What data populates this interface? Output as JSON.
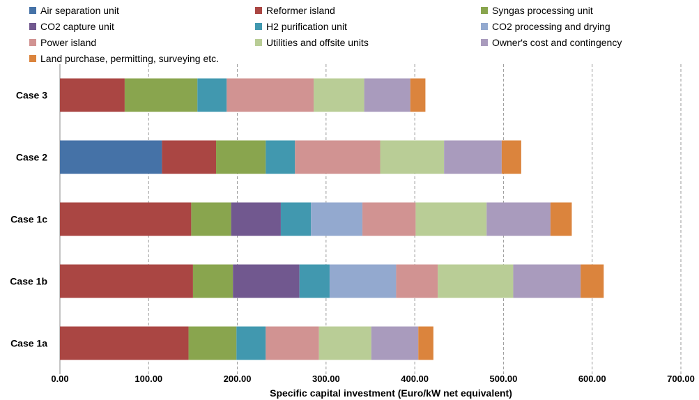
{
  "chart_data": {
    "type": "bar",
    "orientation": "horizontal",
    "stacked": true,
    "title": "",
    "xlabel": "Specific capital investment (Euro/kW net equivalent)",
    "ylabel": "",
    "xlim": [
      0,
      700
    ],
    "x_ticks": [
      0,
      100,
      200,
      300,
      400,
      500,
      600,
      700
    ],
    "x_tick_labels": [
      "0.00",
      "100.00",
      "200.00",
      "300.00",
      "400.00",
      "500.00",
      "600.00",
      "700.00"
    ],
    "grid": "vertical dashed",
    "legend_position": "top",
    "categories": [
      "Case 3",
      "Case 2",
      "Case 1c",
      "Case 1b",
      "Case 1a"
    ],
    "series": [
      {
        "name": "Air separation unit",
        "color": "#4572A7",
        "values": [
          0,
          115,
          0,
          0,
          0
        ]
      },
      {
        "name": "Reformer island",
        "color": "#AA4643",
        "values": [
          73,
          61,
          148,
          150,
          145
        ]
      },
      {
        "name": "Syngas processing unit",
        "color": "#89A54E",
        "values": [
          82,
          56,
          45,
          45,
          54
        ]
      },
      {
        "name": "CO2 capture unit",
        "color": "#71588F",
        "values": [
          0,
          0,
          56,
          75,
          0
        ]
      },
      {
        "name": "H2 purification unit",
        "color": "#4198AF",
        "values": [
          33,
          33,
          34,
          34,
          33
        ]
      },
      {
        "name": "CO2 processing and drying",
        "color": "#93A9CF",
        "values": [
          0,
          0,
          58,
          75,
          0
        ]
      },
      {
        "name": "Power island",
        "color": "#D19392",
        "values": [
          98,
          96,
          60,
          47,
          60
        ]
      },
      {
        "name": "Utilities and offsite units",
        "color": "#B9CD96",
        "values": [
          57,
          72,
          80,
          85,
          59
        ]
      },
      {
        "name": "Owner's cost and contingency",
        "color": "#A99BBD",
        "values": [
          52,
          65,
          72,
          76,
          53
        ]
      },
      {
        "name": "Land purchase, permitting, surveying etc.",
        "color": "#DB843D",
        "values": [
          17,
          22,
          24,
          26,
          17
        ]
      }
    ]
  }
}
